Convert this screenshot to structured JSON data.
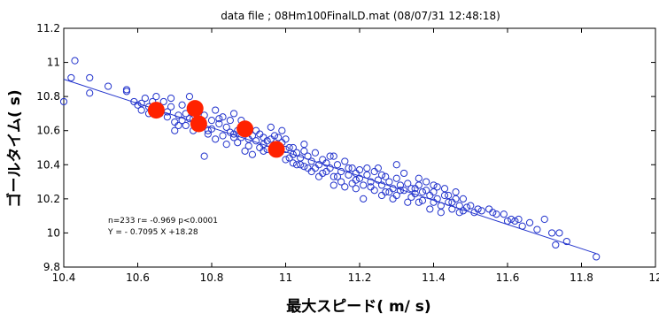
{
  "chart_data": {
    "type": "scatter",
    "title": "data file ; 08Hm100FinalLD.mat  (08/07/31 12:48:18)",
    "xlabel": "最大スピード( m/ s)",
    "ylabel": "ゴールタイム( s)",
    "xlim": [
      10.4,
      12
    ],
    "ylim": [
      9.8,
      11.2
    ],
    "xticks": [
      "10.4",
      "10.6",
      "10.8",
      "11",
      "11.2",
      "11.4",
      "11.6",
      "11.8",
      "12"
    ],
    "yticks": [
      "9.8",
      "10",
      "10.2",
      "10.4",
      "10.6",
      "10.8",
      "11",
      "11.2"
    ],
    "grid": false,
    "annotation": {
      "line1": "n=233  r= -0.969  p<0.0001",
      "line2": "Y = - 0.7095 X  +18.28"
    },
    "regression": {
      "slope": -0.7095,
      "intercept": 18.28,
      "x_range": [
        10.4,
        11.84
      ]
    },
    "colors": {
      "points": "#2233cc",
      "highlight": "#ff2200",
      "line": "#2233cc",
      "axis": "#000000"
    },
    "series": [
      {
        "values_xy": [
          [
            10.4,
            10.77
          ],
          [
            10.43,
            11.01
          ],
          [
            10.42,
            10.91
          ],
          [
            10.47,
            10.82
          ],
          [
            10.47,
            10.91
          ],
          [
            10.52,
            10.86
          ],
          [
            10.57,
            10.84
          ],
          [
            10.57,
            10.83
          ],
          [
            10.6,
            10.75
          ],
          [
            10.61,
            10.76
          ],
          [
            10.62,
            10.79
          ],
          [
            10.63,
            10.74
          ],
          [
            10.64,
            10.77
          ],
          [
            10.65,
            10.8
          ],
          [
            10.66,
            10.72
          ],
          [
            10.66,
            10.7
          ],
          [
            10.67,
            10.77
          ],
          [
            10.68,
            10.71
          ],
          [
            10.69,
            10.74
          ],
          [
            10.7,
            10.65
          ],
          [
            10.7,
            10.6
          ],
          [
            10.71,
            10.69
          ],
          [
            10.72,
            10.75
          ],
          [
            10.73,
            10.7
          ],
          [
            10.73,
            10.63
          ],
          [
            10.74,
            10.8
          ],
          [
            10.75,
            10.67
          ],
          [
            10.75,
            10.6
          ],
          [
            10.76,
            10.72
          ],
          [
            10.77,
            10.64
          ],
          [
            10.78,
            10.69
          ],
          [
            10.79,
            10.58
          ],
          [
            10.8,
            10.66
          ],
          [
            10.8,
            10.61
          ],
          [
            10.81,
            10.55
          ],
          [
            10.82,
            10.64
          ],
          [
            10.82,
            10.67
          ],
          [
            10.83,
            10.57
          ],
          [
            10.84,
            10.62
          ],
          [
            10.84,
            10.52
          ],
          [
            10.85,
            10.66
          ],
          [
            10.86,
            10.58
          ],
          [
            10.86,
            10.7
          ],
          [
            10.87,
            10.6
          ],
          [
            10.87,
            10.53
          ],
          [
            10.88,
            10.56
          ],
          [
            10.89,
            10.62
          ],
          [
            10.9,
            10.55
          ],
          [
            10.9,
            10.51
          ],
          [
            10.91,
            10.57
          ],
          [
            10.92,
            10.54
          ],
          [
            10.92,
            10.6
          ],
          [
            10.93,
            10.5
          ],
          [
            10.94,
            10.56
          ],
          [
            10.94,
            10.52
          ],
          [
            10.95,
            10.49
          ],
          [
            10.96,
            10.55
          ],
          [
            10.97,
            10.5
          ],
          [
            10.97,
            10.57
          ],
          [
            10.98,
            10.47
          ],
          [
            10.99,
            10.53
          ],
          [
            11.0,
            10.49
          ],
          [
            11.0,
            10.55
          ],
          [
            11.01,
            10.44
          ],
          [
            11.02,
            10.5
          ],
          [
            11.02,
            10.41
          ],
          [
            11.03,
            10.47
          ],
          [
            11.04,
            10.44
          ],
          [
            11.05,
            10.52
          ],
          [
            11.05,
            10.39
          ],
          [
            11.06,
            10.45
          ],
          [
            11.07,
            10.42
          ],
          [
            11.07,
            10.36
          ],
          [
            11.08,
            10.47
          ],
          [
            11.09,
            10.4
          ],
          [
            11.1,
            10.43
          ],
          [
            11.1,
            10.35
          ],
          [
            11.11,
            10.41
          ],
          [
            11.12,
            10.38
          ],
          [
            11.13,
            10.45
          ],
          [
            11.13,
            10.33
          ],
          [
            11.14,
            10.4
          ],
          [
            11.15,
            10.36
          ],
          [
            11.15,
            10.3
          ],
          [
            11.16,
            10.42
          ],
          [
            11.17,
            10.34
          ],
          [
            11.18,
            10.38
          ],
          [
            11.18,
            10.29
          ],
          [
            11.19,
            10.35
          ],
          [
            11.2,
            10.32
          ],
          [
            11.2,
            10.37
          ],
          [
            11.21,
            10.28
          ],
          [
            11.22,
            10.34
          ],
          [
            11.23,
            10.3
          ],
          [
            11.24,
            10.36
          ],
          [
            11.24,
            10.25
          ],
          [
            11.25,
            10.31
          ],
          [
            11.26,
            10.28
          ],
          [
            11.27,
            10.33
          ],
          [
            11.27,
            10.24
          ],
          [
            11.28,
            10.3
          ],
          [
            11.29,
            10.26
          ],
          [
            11.3,
            10.32
          ],
          [
            11.3,
            10.22
          ],
          [
            11.31,
            10.28
          ],
          [
            11.32,
            10.25
          ],
          [
            11.33,
            10.29
          ],
          [
            11.34,
            10.21
          ],
          [
            11.34,
            10.26
          ],
          [
            11.35,
            10.23
          ],
          [
            11.36,
            10.28
          ],
          [
            11.37,
            10.19
          ],
          [
            11.38,
            10.25
          ],
          [
            11.39,
            10.22
          ],
          [
            11.4,
            10.18
          ],
          [
            11.4,
            10.24
          ],
          [
            11.41,
            10.2
          ],
          [
            11.42,
            10.16
          ],
          [
            11.43,
            10.22
          ],
          [
            11.44,
            10.18
          ],
          [
            11.45,
            10.14
          ],
          [
            11.46,
            10.2
          ],
          [
            11.47,
            10.16
          ],
          [
            11.48,
            10.13
          ],
          [
            11.5,
            10.16
          ],
          [
            11.52,
            10.14
          ],
          [
            11.55,
            10.14
          ],
          [
            11.56,
            10.12
          ],
          [
            11.59,
            10.11
          ],
          [
            11.61,
            10.08
          ],
          [
            11.62,
            10.07
          ],
          [
            11.63,
            10.08
          ],
          [
            11.64,
            10.04
          ],
          [
            11.66,
            10.06
          ],
          [
            11.68,
            10.02
          ],
          [
            11.7,
            10.08
          ],
          [
            11.72,
            10.0
          ],
          [
            11.74,
            10.0
          ],
          [
            11.76,
            9.95
          ],
          [
            11.73,
            9.93
          ],
          [
            11.84,
            9.86
          ],
          [
            10.78,
            10.45
          ],
          [
            10.91,
            10.46
          ],
          [
            11.02,
            10.46
          ],
          [
            11.19,
            10.31
          ],
          [
            11.22,
            10.38
          ],
          [
            11.29,
            10.2
          ],
          [
            11.36,
            10.32
          ],
          [
            11.43,
            10.26
          ],
          [
            11.48,
            10.2
          ],
          [
            11.3,
            10.4
          ],
          [
            11.21,
            10.2
          ],
          [
            10.96,
            10.62
          ],
          [
            10.89,
            10.48
          ],
          [
            10.72,
            10.66
          ],
          [
            10.69,
            10.79
          ],
          [
            10.68,
            10.68
          ],
          [
            10.81,
            10.72
          ],
          [
            10.83,
            10.68
          ],
          [
            10.88,
            10.66
          ],
          [
            10.93,
            10.58
          ],
          [
            10.99,
            10.6
          ],
          [
            11.05,
            10.48
          ],
          [
            11.08,
            10.38
          ],
          [
            11.12,
            10.45
          ],
          [
            11.14,
            10.33
          ],
          [
            11.16,
            10.27
          ],
          [
            11.25,
            10.38
          ],
          [
            11.28,
            10.24
          ],
          [
            11.32,
            10.35
          ],
          [
            11.35,
            10.26
          ],
          [
            11.38,
            10.3
          ],
          [
            11.41,
            10.27
          ],
          [
            11.44,
            10.22
          ],
          [
            11.46,
            10.24
          ],
          [
            11.47,
            10.12
          ],
          [
            11.42,
            10.12
          ],
          [
            11.39,
            10.14
          ],
          [
            11.37,
            10.24
          ],
          [
            11.33,
            10.18
          ],
          [
            11.26,
            10.22
          ],
          [
            11.23,
            10.27
          ],
          [
            11.17,
            10.38
          ],
          [
            11.11,
            10.36
          ],
          [
            11.06,
            10.38
          ],
          [
            11.03,
            10.4
          ],
          [
            11.01,
            10.5
          ],
          [
            10.98,
            10.56
          ],
          [
            10.95,
            10.54
          ],
          [
            10.85,
            10.59
          ],
          [
            10.79,
            10.6
          ],
          [
            10.76,
            10.67
          ],
          [
            10.74,
            10.67
          ],
          [
            10.71,
            10.63
          ],
          [
            10.65,
            10.74
          ],
          [
            10.63,
            10.7
          ],
          [
            10.61,
            10.72
          ],
          [
            10.59,
            10.77
          ],
          [
            10.86,
            10.56
          ],
          [
            10.9,
            10.6
          ],
          [
            10.94,
            10.48
          ],
          [
            11.0,
            10.43
          ],
          [
            11.04,
            10.4
          ],
          [
            11.09,
            10.33
          ],
          [
            11.13,
            10.28
          ],
          [
            11.19,
            10.26
          ],
          [
            11.26,
            10.34
          ],
          [
            11.31,
            10.25
          ],
          [
            11.36,
            10.18
          ],
          [
            11.4,
            10.28
          ],
          [
            11.45,
            10.18
          ],
          [
            11.49,
            10.15
          ],
          [
            11.51,
            10.12
          ],
          [
            11.53,
            10.13
          ],
          [
            11.57,
            10.11
          ],
          [
            11.6,
            10.07
          ]
        ]
      },
      {
        "values_xy": [
          [
            10.65,
            10.72
          ],
          [
            10.755,
            10.73
          ],
          [
            10.765,
            10.64
          ],
          [
            10.89,
            10.61
          ],
          [
            10.975,
            10.49
          ]
        ]
      }
    ]
  }
}
